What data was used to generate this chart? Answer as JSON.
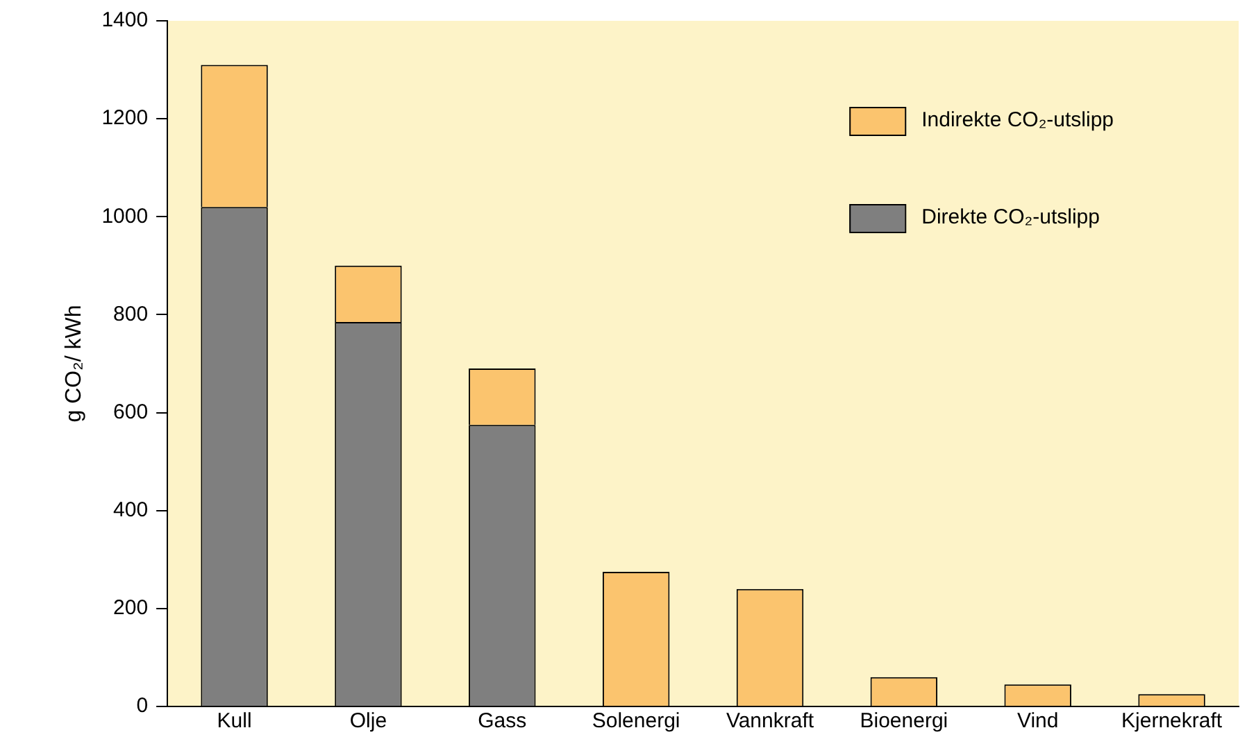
{
  "chart_data": {
    "type": "bar",
    "stacked": true,
    "ylabel": "g CO₂/ kWh",
    "categories": [
      "Kull",
      "Olje",
      "Gass",
      "Solenergi",
      "Vannkraft",
      "Bioenergi",
      "Vind",
      "Kjernekraft"
    ],
    "series": [
      {
        "name": "Direkte CO₂-utslipp",
        "color": "#7f7f7f",
        "values": [
          1020,
          785,
          575,
          null,
          null,
          null,
          null,
          null
        ]
      },
      {
        "name": "Indirekte CO₂-utslipp",
        "color": "#fbc46e",
        "values": [
          290,
          115,
          115,
          275,
          240,
          60,
          45,
          25
        ]
      }
    ],
    "ylim": [
      0,
      1400
    ],
    "yticks": [
      0,
      200,
      400,
      600,
      800,
      1000,
      1200,
      1400
    ],
    "grid": false,
    "legend": "top right"
  }
}
